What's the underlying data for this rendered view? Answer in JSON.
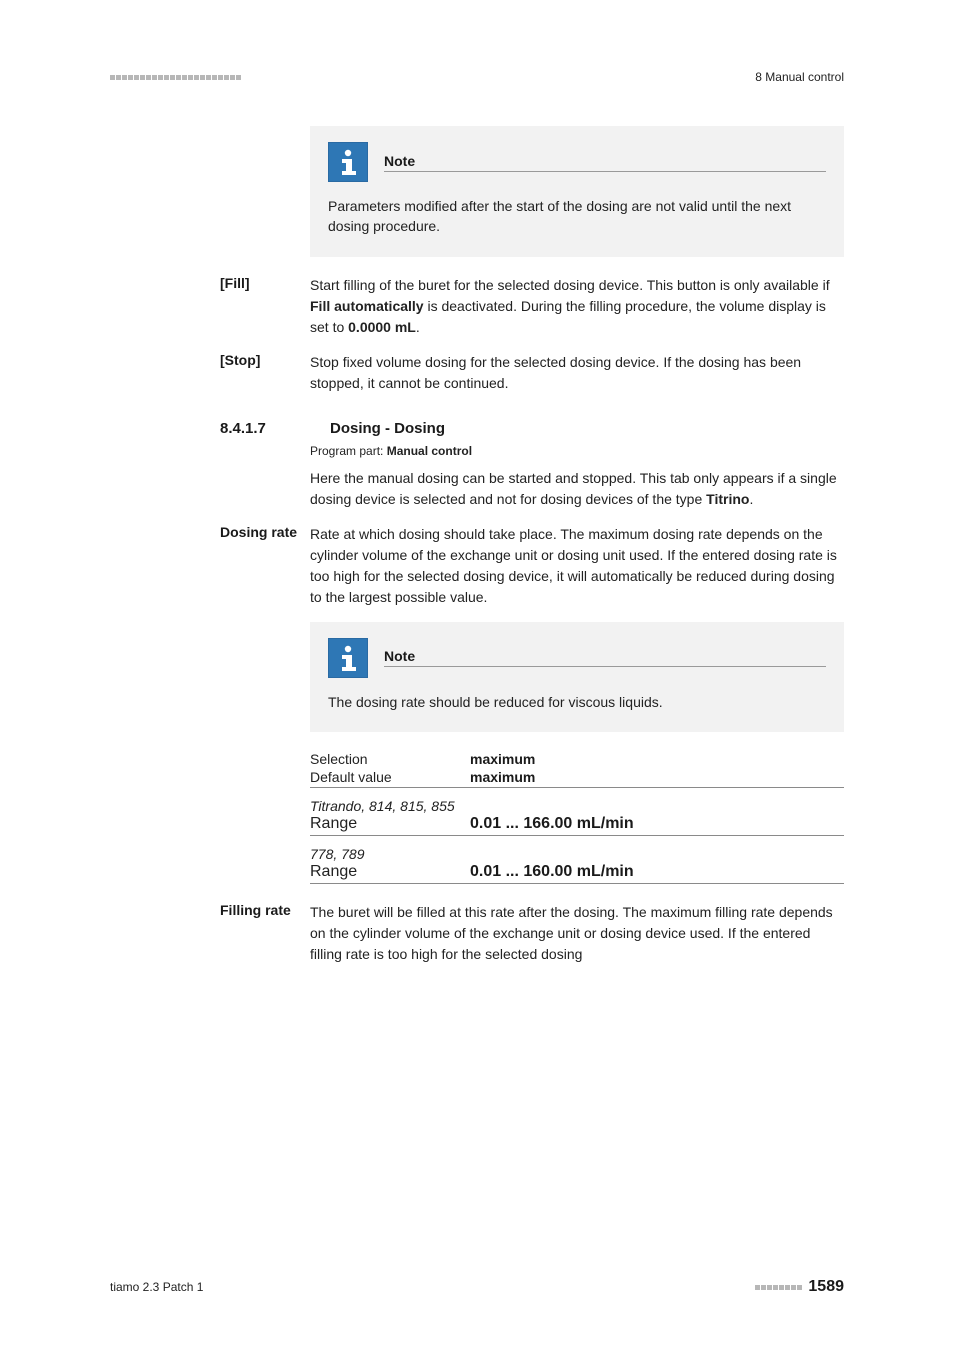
{
  "colors": {
    "background": "#ffffff",
    "text": "#222222",
    "note_bg": "#f2f2f2",
    "icon_bg": "#2e77b5",
    "icon_border": "#2a6aa3",
    "rule": "#8a8a8a",
    "header_mark": "#b7b7b7"
  },
  "header": {
    "chapter": "8 Manual control",
    "mark_count": 22
  },
  "note1": {
    "title": "Note",
    "body": "Parameters modified after the start of the dosing are not valid until the next dosing procedure."
  },
  "fill": {
    "label": "[Fill]",
    "body_pre": "Start filling of the buret for the selected dosing device. This button is only available if ",
    "body_bold1": "Fill automatically",
    "body_mid": " is deactivated. During the filling procedure, the volume display is set to ",
    "body_bold2": "0.0000 mL",
    "body_post": "."
  },
  "stop": {
    "label": "[Stop]",
    "body": "Stop fixed volume dosing for the selected dosing device. If the dosing has been stopped, it cannot be continued."
  },
  "section": {
    "number": "8.4.1.7",
    "title": "Dosing - Dosing",
    "program_part_label": "Program part: ",
    "program_part_value": "Manual control",
    "intro_pre": "Here the manual dosing can be started and stopped. This tab only appears if a single dosing device is selected and not for dosing devices of the type ",
    "intro_bold": "Titrino",
    "intro_post": "."
  },
  "dosing_rate": {
    "label": "Dosing rate",
    "body": "Rate at which dosing should take place. The maximum dosing rate depends on the cylinder volume of the exchange unit or dosing unit used. If the entered dosing rate is too high for the selected dosing device, it will automatically be reduced during dosing to the largest possible value.",
    "note_title": "Note",
    "note_body": "The dosing rate should be reduced for viscous liquids.",
    "rows": [
      {
        "key": "Selection",
        "val": "maximum",
        "underline": false
      },
      {
        "key": "Default value",
        "val": "maximum",
        "underline": true
      }
    ],
    "groups": [
      {
        "head": "Titrando, 814, 815, 855",
        "range_label": "Range",
        "range_val": "0.01 ... 166.00 mL/min"
      },
      {
        "head": "778, 789",
        "range_label": "Range",
        "range_val": "0.01 ... 160.00 mL/min"
      }
    ]
  },
  "filling_rate": {
    "label": "Filling rate",
    "body": "The buret will be filled at this rate after the dosing. The maximum filling rate depends on the cylinder volume of the exchange unit or dosing device used. If the entered filling rate is too high for the selected dosing"
  },
  "footer": {
    "left": "tiamo 2.3 Patch 1",
    "page": "1589",
    "mark_count": 8
  }
}
